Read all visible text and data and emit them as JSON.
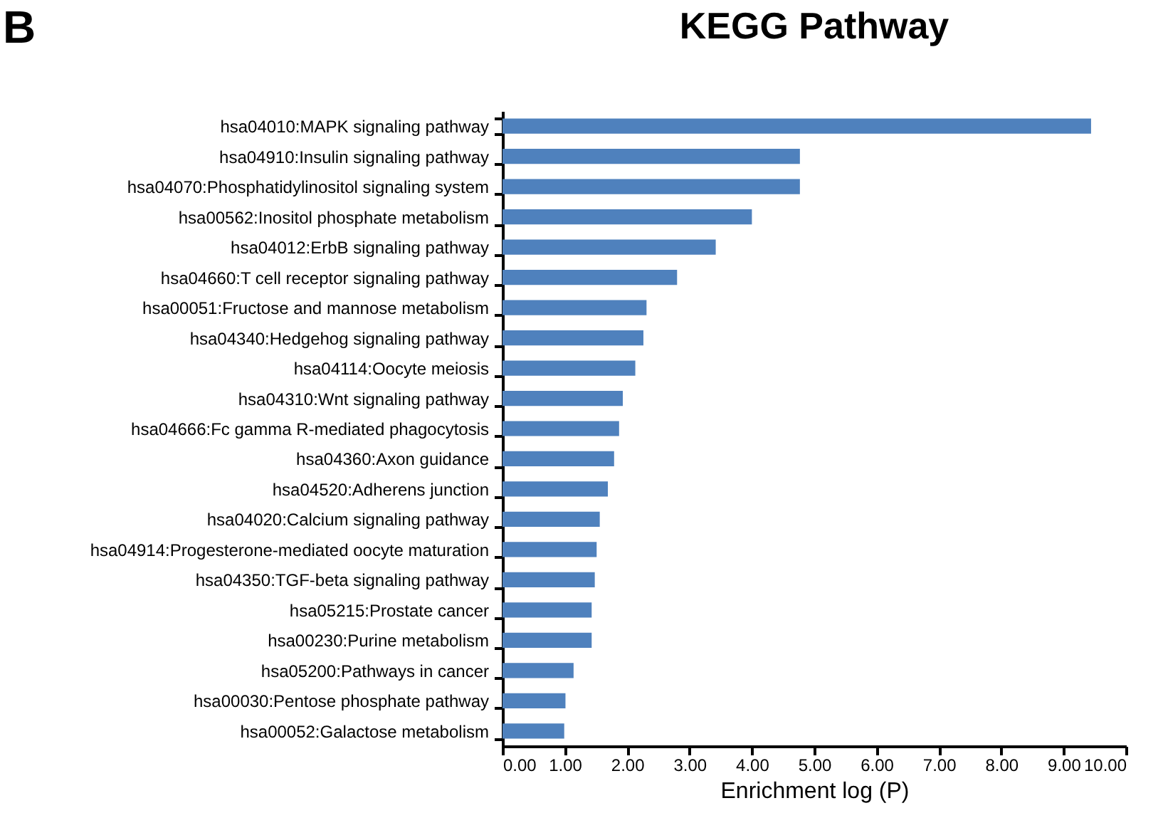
{
  "chart_data": {
    "type": "bar",
    "orientation": "horizontal",
    "title": "KEGG Pathway",
    "xlabel": "Enrichment log (P)",
    "annotations": [
      "B"
    ],
    "categories": [
      "hsa04010:MAPK signaling pathway",
      "hsa04910:Insulin signaling pathway",
      "hsa04070:Phosphatidylinositol signaling system",
      "hsa00562:Inositol phosphate metabolism",
      "hsa04012:ErbB signaling pathway",
      "hsa04660:T cell receptor signaling pathway",
      "hsa00051:Fructose and mannose metabolism",
      "hsa04340:Hedgehog signaling pathway",
      "hsa04114:Oocyte meiosis",
      "hsa04310:Wnt signaling pathway",
      "hsa04666:Fc gamma R-mediated phagocytosis",
      "hsa04360:Axon guidance",
      "hsa04520:Adherens junction",
      "hsa04020:Calcium signaling pathway",
      "hsa04914:Progesterone-mediated oocyte maturation",
      "hsa04350:TGF-beta signaling pathway",
      "hsa05215:Prostate cancer",
      "hsa00230:Purine metabolism",
      "hsa05200:Pathways in cancer",
      "hsa00030:Pentose phosphate pathway",
      "hsa00052:Galactose metabolism"
    ],
    "values": [
      9.44,
      4.77,
      4.77,
      4.0,
      3.42,
      2.8,
      2.31,
      2.26,
      2.13,
      1.93,
      1.87,
      1.79,
      1.69,
      1.56,
      1.51,
      1.48,
      1.43,
      1.43,
      1.14,
      1.01,
      0.99
    ],
    "color": "#4f81bd",
    "xlim": [
      0,
      10
    ],
    "xticks": [
      {
        "value": 0,
        "label": "0.00"
      },
      {
        "value": 1,
        "label": "1.00"
      },
      {
        "value": 2,
        "label": "2.00"
      },
      {
        "value": 3,
        "label": "3.00"
      },
      {
        "value": 4,
        "label": "4.00"
      },
      {
        "value": 5,
        "label": "5.00"
      },
      {
        "value": 6,
        "label": "6.00"
      },
      {
        "value": 7,
        "label": "7.00"
      },
      {
        "value": 8,
        "label": "8.00"
      },
      {
        "value": 9,
        "label": "9.00"
      },
      {
        "value": 10,
        "label": "10.00"
      }
    ],
    "grid": false
  }
}
